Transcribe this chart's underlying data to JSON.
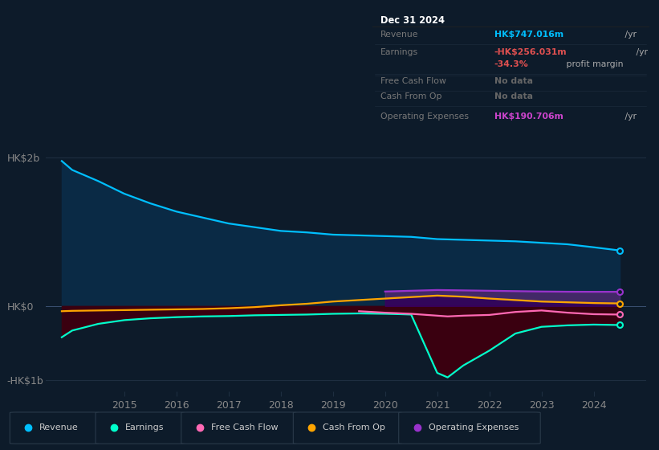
{
  "bg_color": "#0d1b2a",
  "plot_bg_color": "#0d1b2a",
  "revenue_color": "#00bfff",
  "earnings_color": "#00ffcc",
  "free_cash_flow_color": "#ff69b4",
  "cash_from_op_color": "#ffa500",
  "op_expenses_color": "#9932cc",
  "revenue_fill_color": "#0a2a45",
  "earnings_fill_color": "#3a0010",
  "op_fill_color": "#3a0060",
  "grid_color": "#1e2e40",
  "text_color": "#cccccc",
  "axis_label_color": "#888888",
  "tooltip_bg": "#080c10",
  "ylim_min": -1150,
  "ylim_max": 2300,
  "ytick_labels": [
    "HK$2b",
    "HK$0",
    "-HK$1b"
  ],
  "ytick_values": [
    2000,
    0,
    -1000
  ],
  "xtick_labels": [
    "2015",
    "2016",
    "2017",
    "2018",
    "2019",
    "2020",
    "2021",
    "2022",
    "2023",
    "2024"
  ],
  "xtick_values": [
    2015,
    2016,
    2017,
    2018,
    2019,
    2020,
    2021,
    2022,
    2023,
    2024
  ],
  "legend_labels": [
    "Revenue",
    "Earnings",
    "Free Cash Flow",
    "Cash From Op",
    "Operating Expenses"
  ],
  "legend_colors": [
    "#00bfff",
    "#00ffcc",
    "#ff69b4",
    "#ffa500",
    "#9932cc"
  ],
  "rev_years": [
    2013.8,
    2014.0,
    2014.5,
    2015.0,
    2015.5,
    2016.0,
    2016.5,
    2017.0,
    2017.5,
    2018.0,
    2018.5,
    2019.0,
    2019.5,
    2020.0,
    2020.5,
    2021.0,
    2021.5,
    2022.0,
    2022.5,
    2023.0,
    2023.5,
    2024.0,
    2024.5
  ],
  "rev_vals": [
    1950,
    1830,
    1680,
    1510,
    1380,
    1270,
    1190,
    1110,
    1060,
    1010,
    990,
    960,
    950,
    940,
    930,
    900,
    890,
    880,
    870,
    850,
    830,
    790,
    747
  ],
  "earn_years": [
    2013.8,
    2014.0,
    2014.5,
    2015.0,
    2015.5,
    2016.0,
    2016.5,
    2017.0,
    2017.5,
    2018.0,
    2018.5,
    2019.0,
    2019.5,
    2020.0,
    2020.3,
    2020.5,
    2021.0,
    2021.2,
    2021.5,
    2022.0,
    2022.5,
    2023.0,
    2023.5,
    2024.0,
    2024.5
  ],
  "earn_vals": [
    -420,
    -330,
    -240,
    -190,
    -165,
    -150,
    -140,
    -135,
    -125,
    -120,
    -115,
    -105,
    -100,
    -105,
    -110,
    -115,
    -900,
    -960,
    -800,
    -600,
    -370,
    -280,
    -260,
    -250,
    -256
  ],
  "cop_years": [
    2013.8,
    2014.0,
    2014.5,
    2015.0,
    2015.5,
    2016.0,
    2016.5,
    2017.0,
    2017.5,
    2018.0,
    2018.5,
    2019.0,
    2019.5,
    2020.0,
    2020.5,
    2021.0,
    2021.5,
    2022.0,
    2022.5,
    2023.0,
    2023.5,
    2024.0,
    2024.5
  ],
  "cop_vals": [
    -70,
    -65,
    -60,
    -55,
    -50,
    -45,
    -40,
    -30,
    -15,
    10,
    30,
    60,
    80,
    100,
    120,
    140,
    125,
    100,
    80,
    60,
    50,
    40,
    35
  ],
  "fcf_years": [
    2019.5,
    2020.0,
    2020.5,
    2021.0,
    2021.2,
    2021.5,
    2022.0,
    2022.5,
    2023.0,
    2023.5,
    2024.0,
    2024.5
  ],
  "fcf_vals": [
    -70,
    -90,
    -105,
    -130,
    -140,
    -130,
    -120,
    -80,
    -60,
    -90,
    -110,
    -115
  ],
  "op_years": [
    2020.0,
    2020.5,
    2021.0,
    2021.5,
    2022.0,
    2022.5,
    2023.0,
    2023.5,
    2024.0,
    2024.5
  ],
  "op_vals": [
    195,
    205,
    215,
    210,
    205,
    200,
    195,
    192,
    191,
    191
  ]
}
